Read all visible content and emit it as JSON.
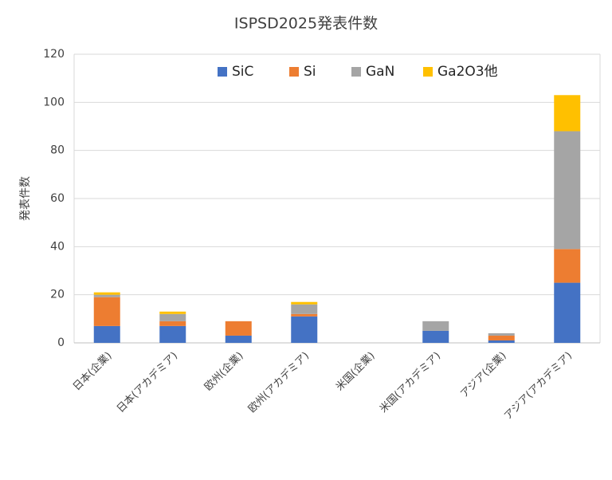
{
  "chart_data": {
    "type": "stacked_bar",
    "title": "ISPSD2025発表件数",
    "y_label": "発表件数",
    "categories": [
      "日本(企業)",
      "日本(アカデミア)",
      "欧州(企業)",
      "欧州(アカデミア)",
      "米国(企業)",
      "米国(アカデミア)",
      "アジア(企業)",
      "アジア(アカデミア)"
    ],
    "series": [
      {
        "name": "SiC",
        "color": "#4472c4",
        "values": [
          7,
          7,
          3,
          11,
          0,
          5,
          1,
          25
        ]
      },
      {
        "name": "Si",
        "color": "#ed7d31",
        "values": [
          12,
          2,
          6,
          1,
          0,
          0,
          2,
          14
        ]
      },
      {
        "name": "GaN",
        "color": "#a5a5a5",
        "values": [
          1,
          3,
          0,
          4,
          0,
          4,
          1,
          49
        ]
      },
      {
        "name": "Ga2O3他",
        "color": "#ffc000",
        "values": [
          1,
          1,
          0,
          1,
          0,
          0,
          0,
          15
        ]
      }
    ],
    "ylim": [
      0,
      120
    ],
    "yticks": [
      0,
      20,
      40,
      60,
      80,
      100,
      120
    ],
    "grid": true,
    "legend": "top"
  }
}
